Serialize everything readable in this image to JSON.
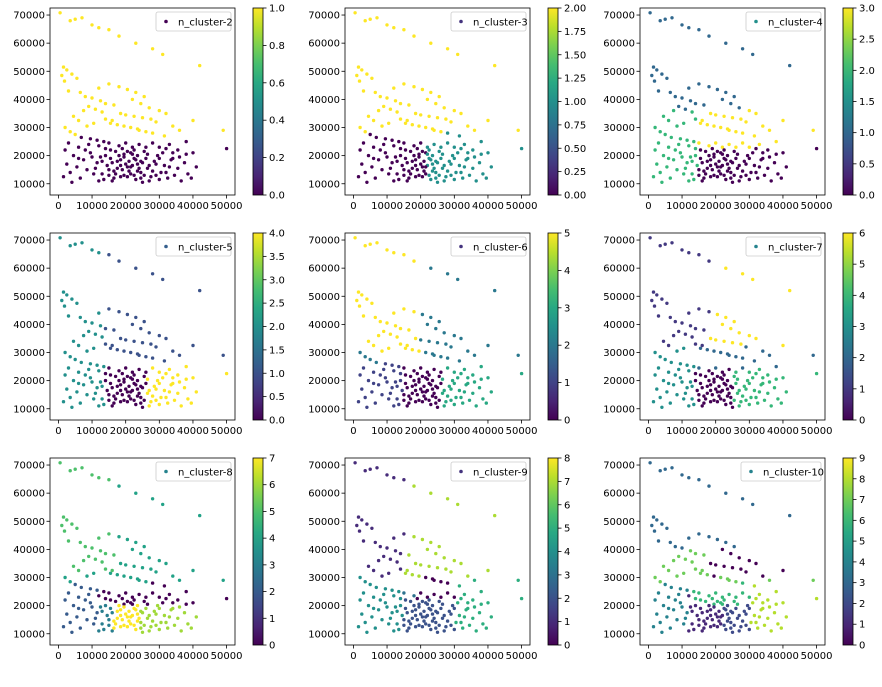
{
  "chart_data": [
    {
      "type": "scatter",
      "legend": "n_cluster-2",
      "legend_position": "top-right",
      "clusters": 2,
      "xlim": [
        -2500,
        52500
      ],
      "ylim": [
        6000,
        72500
      ],
      "xticks": [
        0,
        10000,
        20000,
        30000,
        40000,
        50000
      ],
      "yticks": [
        10000,
        20000,
        30000,
        40000,
        50000,
        60000,
        70000
      ],
      "colorbar": {
        "min": 0,
        "max": 1,
        "ticks": [
          "0.0",
          "0.2",
          "0.4",
          "0.6",
          "0.8",
          "1.0"
        ]
      }
    },
    {
      "type": "scatter",
      "legend": "n_cluster-3",
      "legend_position": "top-right",
      "clusters": 3,
      "xlim": [
        -2500,
        52500
      ],
      "ylim": [
        6000,
        72500
      ],
      "xticks": [
        0,
        10000,
        20000,
        30000,
        40000,
        50000
      ],
      "yticks": [
        10000,
        20000,
        30000,
        40000,
        50000,
        60000,
        70000
      ],
      "colorbar": {
        "min": 0,
        "max": 2,
        "ticks": [
          "0.00",
          "0.25",
          "0.50",
          "0.75",
          "1.00",
          "1.25",
          "1.50",
          "1.75",
          "2.00"
        ]
      }
    },
    {
      "type": "scatter",
      "legend": "n_cluster-4",
      "legend_position": "top-right",
      "clusters": 4,
      "xlim": [
        -2500,
        52500
      ],
      "ylim": [
        6000,
        72500
      ],
      "xticks": [
        0,
        10000,
        20000,
        30000,
        40000,
        50000
      ],
      "yticks": [
        10000,
        20000,
        30000,
        40000,
        50000,
        60000,
        70000
      ],
      "colorbar": {
        "min": 0,
        "max": 3,
        "ticks": [
          "0.0",
          "0.5",
          "1.0",
          "1.5",
          "2.0",
          "2.5",
          "3.0"
        ]
      }
    },
    {
      "type": "scatter",
      "legend": "n_cluster-5",
      "legend_position": "top-right",
      "clusters": 5,
      "xlim": [
        -2500,
        52500
      ],
      "ylim": [
        6000,
        72500
      ],
      "xticks": [
        0,
        10000,
        20000,
        30000,
        40000,
        50000
      ],
      "yticks": [
        10000,
        20000,
        30000,
        40000,
        50000,
        60000,
        70000
      ],
      "colorbar": {
        "min": 0,
        "max": 4,
        "ticks": [
          "0.0",
          "0.5",
          "1.0",
          "1.5",
          "2.0",
          "2.5",
          "3.0",
          "3.5",
          "4.0"
        ]
      }
    },
    {
      "type": "scatter",
      "legend": "n_cluster-6",
      "legend_position": "top-right",
      "clusters": 6,
      "xlim": [
        -2500,
        52500
      ],
      "ylim": [
        6000,
        72500
      ],
      "xticks": [
        0,
        10000,
        20000,
        30000,
        40000,
        50000
      ],
      "yticks": [
        10000,
        20000,
        30000,
        40000,
        50000,
        60000,
        70000
      ],
      "colorbar": {
        "min": 0,
        "max": 5,
        "ticks": [
          "0",
          "1",
          "2",
          "3",
          "4",
          "5"
        ]
      }
    },
    {
      "type": "scatter",
      "legend": "n_cluster-7",
      "legend_position": "top-right",
      "clusters": 7,
      "xlim": [
        -2500,
        52500
      ],
      "ylim": [
        6000,
        72500
      ],
      "xticks": [
        0,
        10000,
        20000,
        30000,
        40000,
        50000
      ],
      "yticks": [
        10000,
        20000,
        30000,
        40000,
        50000,
        60000,
        70000
      ],
      "colorbar": {
        "min": 0,
        "max": 6,
        "ticks": [
          "0",
          "1",
          "2",
          "3",
          "4",
          "5",
          "6"
        ]
      }
    },
    {
      "type": "scatter",
      "legend": "n_cluster-8",
      "legend_position": "top-right",
      "clusters": 8,
      "xlim": [
        -2500,
        52500
      ],
      "ylim": [
        6000,
        72500
      ],
      "xticks": [
        0,
        10000,
        20000,
        30000,
        40000,
        50000
      ],
      "yticks": [
        10000,
        20000,
        30000,
        40000,
        50000,
        60000,
        70000
      ],
      "colorbar": {
        "min": 0,
        "max": 7,
        "ticks": [
          "0",
          "1",
          "2",
          "3",
          "4",
          "5",
          "6",
          "7"
        ]
      }
    },
    {
      "type": "scatter",
      "legend": "n_cluster-9",
      "legend_position": "top-right",
      "clusters": 9,
      "xlim": [
        -2500,
        52500
      ],
      "ylim": [
        6000,
        72500
      ],
      "xticks": [
        0,
        10000,
        20000,
        30000,
        40000,
        50000
      ],
      "yticks": [
        10000,
        20000,
        30000,
        40000,
        50000,
        60000,
        70000
      ],
      "colorbar": {
        "min": 0,
        "max": 8,
        "ticks": [
          "0",
          "1",
          "2",
          "3",
          "4",
          "5",
          "6",
          "7",
          "8"
        ]
      }
    },
    {
      "type": "scatter",
      "legend": "n_cluster-10",
      "legend_position": "top-right",
      "clusters": 10,
      "xlim": [
        -2500,
        52500
      ],
      "ylim": [
        6000,
        72500
      ],
      "xticks": [
        0,
        10000,
        20000,
        30000,
        40000,
        50000
      ],
      "yticks": [
        10000,
        20000,
        30000,
        40000,
        50000,
        60000,
        70000
      ],
      "colorbar": {
        "min": 0,
        "max": 9,
        "ticks": [
          "0",
          "1",
          "2",
          "3",
          "4",
          "5",
          "6",
          "7",
          "8",
          "9"
        ]
      }
    }
  ],
  "points": [
    [
      500,
      70800
    ],
    [
      7000,
      69000
    ],
    [
      5000,
      68500
    ],
    [
      3500,
      68000
    ],
    [
      10000,
      66500
    ],
    [
      12000,
      65500
    ],
    [
      15000,
      64800
    ],
    [
      18000,
      62500
    ],
    [
      23000,
      60000
    ],
    [
      28000,
      58000
    ],
    [
      31000,
      56000
    ],
    [
      42000,
      52000
    ],
    [
      1500,
      51500
    ],
    [
      2500,
      50500
    ],
    [
      4000,
      49000
    ],
    [
      1000,
      48500
    ],
    [
      5500,
      47500
    ],
    [
      1800,
      46500
    ],
    [
      3000,
      43000
    ],
    [
      6500,
      42500
    ],
    [
      8000,
      41000
    ],
    [
      10000,
      40500
    ],
    [
      12500,
      39500
    ],
    [
      14000,
      38500
    ],
    [
      16500,
      38000
    ],
    [
      9000,
      37500
    ],
    [
      11000,
      36500
    ],
    [
      13000,
      35500
    ],
    [
      18500,
      35000
    ],
    [
      20000,
      34500
    ],
    [
      22500,
      34000
    ],
    [
      25000,
      33500
    ],
    [
      27500,
      33000
    ],
    [
      29000,
      32000
    ],
    [
      15500,
      31500
    ],
    [
      17500,
      31000
    ],
    [
      19500,
      30500
    ],
    [
      21500,
      30000
    ],
    [
      23500,
      29500
    ],
    [
      24000,
      29000
    ],
    [
      26000,
      28500
    ],
    [
      28000,
      28000
    ],
    [
      6000,
      32500
    ],
    [
      4500,
      34000
    ],
    [
      7500,
      36000
    ],
    [
      12000,
      44000
    ],
    [
      15000,
      45500
    ],
    [
      18000,
      44500
    ],
    [
      20500,
      43500
    ],
    [
      23000,
      42500
    ],
    [
      25500,
      41000
    ],
    [
      22000,
      40000
    ],
    [
      24500,
      38500
    ],
    [
      27000,
      37000
    ],
    [
      30000,
      36000
    ],
    [
      32000,
      35000
    ],
    [
      14000,
      33000
    ],
    [
      16000,
      32500
    ],
    [
      10500,
      31500
    ],
    [
      8500,
      30500
    ],
    [
      2000,
      30000
    ],
    [
      3500,
      28500
    ],
    [
      5000,
      27500
    ],
    [
      6800,
      26500
    ],
    [
      9500,
      26000
    ],
    [
      11500,
      25500
    ],
    [
      13500,
      25000
    ],
    [
      36000,
      29000
    ],
    [
      40000,
      32500
    ],
    [
      49000,
      29000
    ],
    [
      50000,
      22500
    ],
    [
      38000,
      25000
    ],
    [
      31500,
      27000
    ],
    [
      34000,
      30500
    ],
    [
      33000,
      24000
    ],
    [
      35500,
      22000
    ],
    [
      1500,
      12500
    ],
    [
      2500,
      17000
    ],
    [
      3500,
      14000
    ],
    [
      4500,
      20000
    ],
    [
      5500,
      16000
    ],
    [
      6500,
      12000
    ],
    [
      7500,
      18500
    ],
    [
      8500,
      15000
    ],
    [
      9500,
      21000
    ],
    [
      10500,
      13500
    ],
    [
      11500,
      17500
    ],
    [
      12500,
      19500
    ],
    [
      13500,
      11500
    ],
    [
      14500,
      16500
    ],
    [
      15500,
      22000
    ],
    [
      16500,
      14500
    ],
    [
      17500,
      18000
    ],
    [
      18500,
      12500
    ],
    [
      19500,
      20500
    ],
    [
      20500,
      16000
    ],
    [
      21500,
      13500
    ],
    [
      22500,
      19000
    ],
    [
      23500,
      17000
    ],
    [
      24500,
      14000
    ],
    [
      25500,
      21500
    ],
    [
      26500,
      15500
    ],
    [
      27500,
      12500
    ],
    [
      28500,
      18000
    ],
    [
      29500,
      20000
    ],
    [
      30500,
      14000
    ],
    [
      31500,
      16500
    ],
    [
      32500,
      12000
    ],
    [
      33500,
      18500
    ],
    [
      34500,
      13000
    ],
    [
      35500,
      15500
    ],
    [
      36500,
      11000
    ],
    [
      37500,
      17500
    ],
    [
      38500,
      13500
    ],
    [
      39500,
      12000
    ],
    [
      41000,
      16000
    ],
    [
      2000,
      22000
    ],
    [
      3000,
      24500
    ],
    [
      6000,
      23000
    ],
    [
      9000,
      24000
    ],
    [
      12000,
      23500
    ],
    [
      15000,
      24500
    ],
    [
      18000,
      23500
    ],
    [
      20000,
      24500
    ],
    [
      22000,
      23000
    ],
    [
      24000,
      24000
    ],
    [
      26000,
      23000
    ],
    [
      28000,
      24500
    ],
    [
      30000,
      23000
    ],
    [
      32000,
      22500
    ],
    [
      34000,
      21000
    ],
    [
      36000,
      19500
    ],
    [
      38000,
      20500
    ],
    [
      40000,
      21000
    ],
    [
      19000,
      15000
    ],
    [
      20000,
      17000
    ],
    [
      21000,
      14500
    ],
    [
      22000,
      16500
    ],
    [
      23000,
      18500
    ],
    [
      24000,
      15500
    ],
    [
      25000,
      17500
    ],
    [
      19500,
      19500
    ],
    [
      21500,
      21000
    ],
    [
      23500,
      20000
    ],
    [
      18500,
      16500
    ],
    [
      20500,
      12500
    ],
    [
      22500,
      13000
    ],
    [
      24500,
      12000
    ],
    [
      26000,
      19000
    ],
    [
      27000,
      16500
    ],
    [
      28000,
      14500
    ],
    [
      29000,
      17000
    ],
    [
      30000,
      19000
    ],
    [
      31000,
      21000
    ],
    [
      13000,
      18000
    ],
    [
      14000,
      20000
    ],
    [
      15000,
      15000
    ],
    [
      16000,
      17500
    ],
    [
      17000,
      21500
    ],
    [
      16000,
      11000
    ],
    [
      15000,
      13000
    ],
    [
      17000,
      13500
    ],
    [
      18000,
      20000
    ],
    [
      19000,
      22500
    ],
    [
      21000,
      18000
    ],
    [
      22000,
      20500
    ],
    [
      23000,
      11500
    ],
    [
      25000,
      10500
    ],
    [
      27000,
      11000
    ],
    [
      29000,
      13000
    ],
    [
      30000,
      11500
    ],
    [
      32000,
      14000
    ],
    [
      33000,
      16000
    ],
    [
      34000,
      19000
    ],
    [
      4000,
      10500
    ],
    [
      6000,
      19000
    ],
    [
      8000,
      22000
    ],
    [
      10000,
      19500
    ],
    [
      11000,
      15500
    ],
    [
      12000,
      11000
    ],
    [
      13000,
      13500
    ],
    [
      14000,
      22500
    ],
    [
      15500,
      19000
    ],
    [
      16500,
      12000
    ],
    [
      17500,
      15500
    ],
    [
      18500,
      18500
    ],
    [
      19500,
      13000
    ],
    [
      20500,
      21500
    ],
    [
      21500,
      16000
    ],
    [
      22500,
      22000
    ],
    [
      23500,
      14500
    ],
    [
      24500,
      18000
    ],
    [
      25500,
      13000
    ],
    [
      26500,
      20500
    ]
  ]
}
